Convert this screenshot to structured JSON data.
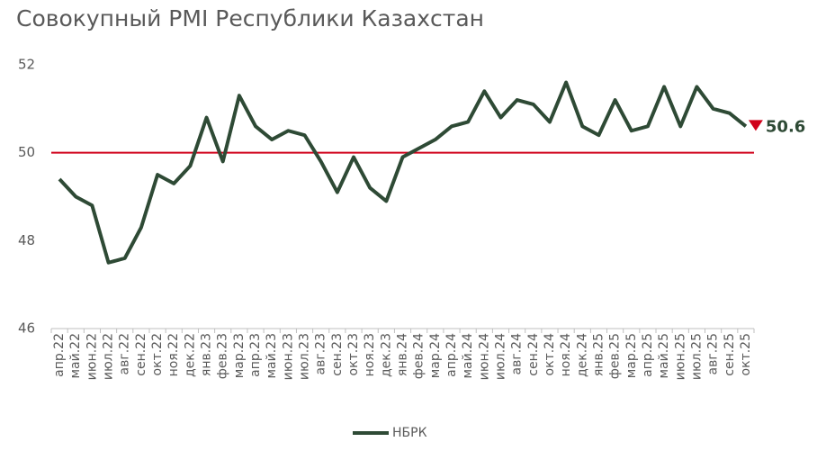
{
  "chart_data": {
    "type": "line",
    "title": "Совокупный PMI Республики Казахстан",
    "categories": [
      "апр.22",
      "май.22",
      "июн.22",
      "июл.22",
      "авг.22",
      "сен.22",
      "окт.22",
      "ноя.22",
      "дек.22",
      "янв.23",
      "фев.23",
      "мар.23",
      "апр.23",
      "май.23",
      "июн.23",
      "июл.23",
      "авг.23",
      "сен.23",
      "окт.23",
      "ноя.23",
      "дек.23",
      "янв.24",
      "фев.24",
      "мар.24",
      "апр.24",
      "май.24",
      "июн.24",
      "июл.24",
      "авг.24",
      "сен.24",
      "окт.24",
      "ноя.24",
      "дек.24",
      "янв.25",
      "фев.25",
      "мар.25",
      "апр.25",
      "май.25",
      "июн.25",
      "июл.25",
      "авг.25",
      "сен.25",
      "окт.25"
    ],
    "series": [
      {
        "name": "НБРК",
        "color": "#2e4a35",
        "values": [
          49.4,
          49.0,
          48.8,
          47.5,
          47.6,
          48.3,
          49.5,
          49.3,
          49.7,
          50.8,
          49.8,
          51.3,
          50.6,
          50.3,
          50.5,
          50.4,
          49.8,
          49.1,
          49.9,
          49.2,
          48.9,
          49.9,
          50.1,
          50.3,
          50.6,
          50.7,
          51.4,
          50.8,
          51.2,
          51.1,
          50.7,
          51.6,
          50.6,
          50.4,
          51.2,
          50.5,
          50.6,
          51.5,
          50.6,
          51.5,
          51.0,
          50.9,
          50.6
        ]
      }
    ],
    "ylim": [
      46,
      52
    ],
    "yticks": [
      46,
      48,
      50,
      52
    ],
    "reference_line": {
      "value": 50,
      "color": "#d0021b"
    },
    "legend": "bottom"
  }
}
